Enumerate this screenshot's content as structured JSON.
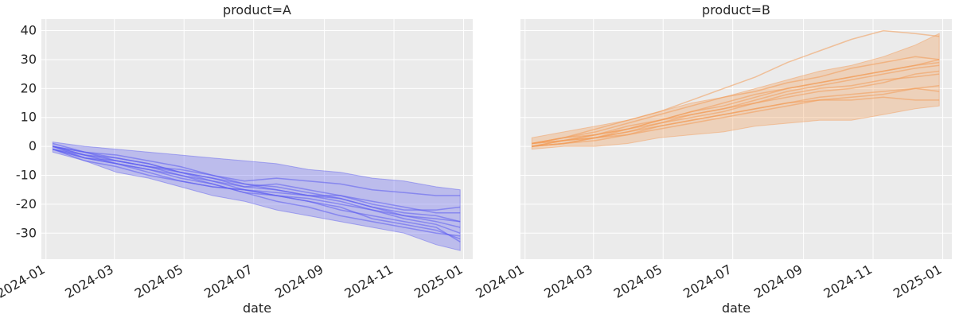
{
  "colors": {
    "product_A": "#5b5bf0",
    "product_B": "#f39a55",
    "panel_background": "#ebebeb",
    "grid": "#ffffff"
  },
  "chart_data": [
    {
      "type": "line",
      "title": "product=A",
      "xlabel": "date",
      "ylabel": "",
      "x_ticks": [
        "2024-01",
        "2024-03",
        "2024-05",
        "2024-07",
        "2024-09",
        "2024-11",
        "2025-01"
      ],
      "y_ticks": [
        40,
        30,
        20,
        10,
        0,
        -10,
        -20,
        -30
      ],
      "xlim": [
        "2023-12-28",
        "2025-01-09"
      ],
      "ylim": [
        -39,
        44
      ],
      "grid": true,
      "color": "#5b5bf0",
      "x": [
        "2024-01-07",
        "2024-02-04",
        "2024-03-03",
        "2024-03-31",
        "2024-04-28",
        "2024-05-26",
        "2024-06-23",
        "2024-07-21",
        "2024-08-18",
        "2024-09-15",
        "2024-10-13",
        "2024-11-10",
        "2024-12-08",
        "2024-12-29"
      ],
      "band": {
        "lower": [
          -2,
          -5,
          -9,
          -11,
          -14,
          -17,
          -19,
          -22,
          -24,
          -26,
          -28,
          -30,
          -34,
          -36
        ],
        "upper": [
          1.5,
          0,
          -1,
          -2,
          -3,
          -4,
          -5,
          -6,
          -8,
          -9,
          -11,
          -12,
          -14,
          -15
        ]
      },
      "series": [
        {
          "values": [
            0,
            -4,
            -6,
            -9,
            -12,
            -14,
            -15,
            -16,
            -17,
            -19,
            -22,
            -25,
            -27,
            -30
          ]
        },
        {
          "values": [
            -1,
            -3,
            -6,
            -8,
            -10,
            -13,
            -16,
            -17,
            -19,
            -22,
            -24,
            -26,
            -28,
            -33
          ]
        },
        {
          "values": [
            1,
            -2,
            -5,
            -7,
            -9,
            -11,
            -14,
            -15,
            -17,
            -18,
            -21,
            -24,
            -25,
            -26
          ]
        },
        {
          "values": [
            0,
            -3,
            -4,
            -6,
            -9,
            -12,
            -14,
            -13,
            -15,
            -17,
            -20,
            -22,
            -22,
            -21
          ]
        },
        {
          "values": [
            -1,
            -5,
            -7,
            -10,
            -12,
            -14,
            -15,
            -17,
            -19,
            -21,
            -25,
            -27,
            -29,
            -32
          ]
        },
        {
          "values": [
            0,
            -2,
            -3,
            -5,
            -7,
            -10,
            -12,
            -11,
            -12,
            -13,
            -15,
            -16,
            -17,
            -17
          ]
        },
        {
          "values": [
            -1,
            -4,
            -6,
            -8,
            -11,
            -13,
            -16,
            -19,
            -21,
            -24,
            -26,
            -28,
            -30,
            -31
          ]
        },
        {
          "values": [
            0,
            -3,
            -5,
            -7,
            -8,
            -10,
            -13,
            -15,
            -17,
            -17,
            -19,
            -21,
            -23,
            -23
          ]
        },
        {
          "values": [
            -1,
            -4,
            -5,
            -7,
            -10,
            -12,
            -15,
            -17,
            -18,
            -20,
            -22,
            -24,
            -26,
            -28
          ]
        },
        {
          "values": [
            0,
            -2,
            -4,
            -6,
            -9,
            -11,
            -13,
            -14,
            -16,
            -18,
            -21,
            -23,
            -24,
            -26
          ]
        }
      ]
    },
    {
      "type": "line",
      "title": "product=B",
      "xlabel": "date",
      "ylabel": "",
      "x_ticks": [
        "2024-01",
        "2024-03",
        "2024-05",
        "2024-07",
        "2024-09",
        "2024-11",
        "2025-01"
      ],
      "y_ticks": [
        40,
        30,
        20,
        10,
        0,
        -10,
        -20,
        -30
      ],
      "xlim": [
        "2023-12-28",
        "2025-01-09"
      ],
      "ylim": [
        -39,
        44
      ],
      "grid": true,
      "color": "#f39a55",
      "x": [
        "2024-01-07",
        "2024-02-04",
        "2024-03-03",
        "2024-03-31",
        "2024-04-28",
        "2024-05-26",
        "2024-06-23",
        "2024-07-21",
        "2024-08-18",
        "2024-09-15",
        "2024-10-13",
        "2024-11-10",
        "2024-12-08",
        "2024-12-29"
      ],
      "band": {
        "lower": [
          -1,
          0,
          0,
          1,
          3,
          4,
          5,
          7,
          8,
          9,
          9,
          11,
          13,
          14
        ],
        "upper": [
          3,
          5,
          7,
          9,
          12,
          15,
          17,
          20,
          23,
          26,
          28,
          31,
          35,
          39
        ]
      },
      "series": [
        {
          "values": [
            1,
            3,
            5,
            8,
            11,
            14,
            17,
            19,
            22,
            24,
            27,
            29,
            31,
            30
          ]
        },
        {
          "values": [
            0,
            2,
            3,
            5,
            8,
            10,
            12,
            15,
            17,
            19,
            20,
            22,
            25,
            26
          ]
        },
        {
          "values": [
            1,
            2,
            4,
            6,
            9,
            11,
            13,
            16,
            19,
            21,
            23,
            25,
            27,
            28
          ]
        },
        {
          "values": [
            0,
            1,
            2,
            4,
            6,
            8,
            10,
            12,
            14,
            16,
            17,
            18,
            20,
            21
          ]
        },
        {
          "values": [
            1,
            3,
            6,
            9,
            12,
            16,
            20,
            24,
            29,
            33,
            37,
            40,
            39,
            38
          ]
        },
        {
          "values": [
            0,
            1,
            3,
            5,
            7,
            9,
            11,
            13,
            15,
            16,
            16,
            17,
            16,
            16
          ]
        },
        {
          "values": [
            1,
            2,
            4,
            7,
            9,
            12,
            14,
            17,
            20,
            22,
            24,
            26,
            28,
            29
          ]
        },
        {
          "values": [
            0,
            2,
            3,
            6,
            8,
            11,
            13,
            15,
            18,
            20,
            21,
            23,
            24,
            25
          ]
        },
        {
          "values": [
            1,
            3,
            4,
            6,
            9,
            12,
            15,
            18,
            20,
            22,
            24,
            26,
            28,
            30
          ]
        },
        {
          "values": [
            0,
            1,
            3,
            4,
            7,
            9,
            11,
            13,
            15,
            17,
            18,
            19,
            20,
            19
          ]
        }
      ]
    }
  ]
}
